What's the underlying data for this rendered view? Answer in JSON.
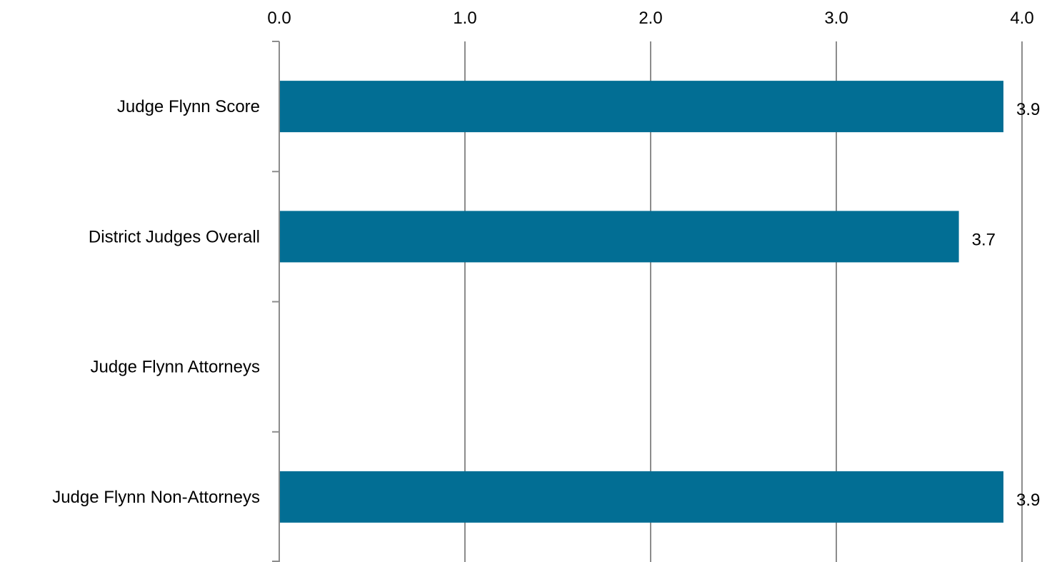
{
  "chart_data": {
    "type": "bar",
    "orientation": "horizontal",
    "categories": [
      "Judge Flynn Score",
      "District Judges Overall",
      "Judge Flynn Attorneys",
      "Judge Flynn Non-Attorneys"
    ],
    "values": [
      3.9,
      3.66,
      null,
      3.9
    ],
    "value_labels": [
      "3.9",
      "3.7",
      "",
      "3.9"
    ],
    "xlim": [
      0,
      4
    ],
    "x_ticks": [
      0,
      1,
      2,
      3,
      4
    ],
    "x_tick_labels": [
      "0.0",
      "1.0",
      "2.0",
      "3.0",
      "4.0"
    ],
    "x_axis_position": "top",
    "title": "",
    "xlabel": "",
    "ylabel": "",
    "grid": "vertical",
    "legend": "none",
    "colors": {
      "bar": "#026e94",
      "grid": "#8c8c8c",
      "text": "#000000"
    }
  }
}
